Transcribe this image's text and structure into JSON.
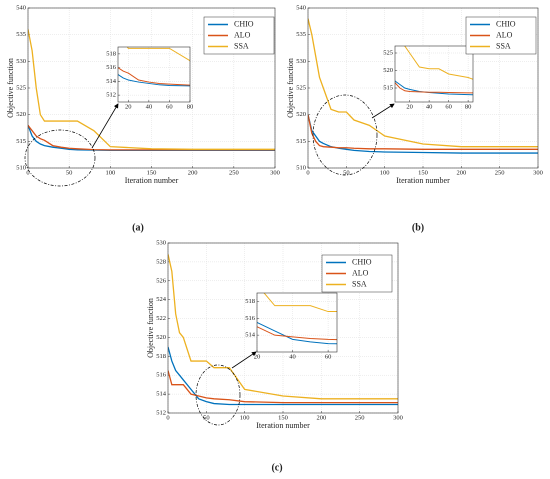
{
  "chart_data": [
    {
      "type": "line",
      "panel_label": "(a)",
      "x_label": "Iteration number",
      "y_label": "Objective function",
      "x": [
        0,
        5,
        10,
        15,
        20,
        30,
        40,
        50,
        60,
        80,
        100,
        150,
        200,
        300
      ],
      "series": [
        {
          "name": "CHIO",
          "color": "#0072BD",
          "values": [
            518,
            516,
            515,
            514.5,
            514.2,
            513.9,
            513.7,
            513.5,
            513.4,
            513.35,
            513.3,
            513.3,
            513.3,
            513.3
          ]
        },
        {
          "name": "ALO",
          "color": "#D95319",
          "values": [
            518,
            517,
            516,
            515.5,
            515.2,
            514.2,
            513.9,
            513.7,
            513.6,
            513.45,
            513.4,
            513.4,
            513.4,
            513.4
          ]
        },
        {
          "name": "SSA",
          "color": "#EDB120",
          "values": [
            536,
            532,
            525,
            520,
            518.8,
            518.8,
            518.8,
            518.8,
            518.8,
            517,
            514,
            513.6,
            513.5,
            513.5
          ]
        }
      ],
      "xlim": [
        0,
        300
      ],
      "xticks": [
        0,
        50,
        100,
        150,
        200,
        250,
        300
      ],
      "ylim": [
        510,
        540
      ],
      "yticks": [
        510,
        515,
        520,
        525,
        530,
        535,
        540
      ],
      "grid": true,
      "inset": {
        "xlim": [
          10,
          80
        ],
        "xticks": [
          20,
          40,
          60,
          80
        ],
        "ylim": [
          511,
          519
        ],
        "yticks": [
          512,
          514,
          516,
          518
        ]
      }
    },
    {
      "type": "line",
      "panel_label": "(b)",
      "x_label": "Iteration number",
      "y_label": "Objective function",
      "x": [
        0,
        5,
        10,
        15,
        20,
        30,
        40,
        50,
        60,
        80,
        100,
        150,
        200,
        300
      ],
      "series": [
        {
          "name": "CHIO",
          "color": "#0072BD",
          "values": [
            520,
            517,
            516,
            515,
            514.6,
            514,
            513.7,
            513.5,
            513.3,
            513.1,
            513,
            512.9,
            512.8,
            512.8
          ]
        },
        {
          "name": "ALO",
          "color": "#D95319",
          "values": [
            520,
            516.5,
            515,
            514.2,
            514,
            513.9,
            513.8,
            513.8,
            513.7,
            513.6,
            513.6,
            513.5,
            513.5,
            513.5
          ]
        },
        {
          "name": "SSA",
          "color": "#EDB120",
          "values": [
            538,
            535,
            531,
            527,
            525,
            521,
            520.5,
            520.5,
            519,
            518,
            516,
            514.5,
            514,
            514
          ]
        }
      ],
      "xlim": [
        0,
        300
      ],
      "xticks": [
        0,
        50,
        100,
        150,
        200,
        250,
        300
      ],
      "ylim": [
        510,
        540
      ],
      "yticks": [
        510,
        515,
        520,
        525,
        530,
        535,
        540
      ],
      "grid": true,
      "inset": {
        "xlim": [
          5,
          85
        ],
        "xticks": [
          20,
          40,
          60,
          80
        ],
        "ylim": [
          511,
          527
        ],
        "yticks": [
          515,
          520,
          525
        ]
      }
    },
    {
      "type": "line",
      "panel_label": "(c)",
      "x_label": "Iteration number",
      "y_label": "Objective function",
      "x": [
        0,
        5,
        10,
        15,
        20,
        30,
        40,
        50,
        60,
        80,
        100,
        150,
        200,
        300
      ],
      "series": [
        {
          "name": "CHIO",
          "color": "#0072BD",
          "values": [
            519,
            517.5,
            516.5,
            516,
            515.5,
            514.5,
            513.5,
            513.2,
            513,
            512.9,
            512.9,
            512.9,
            512.9,
            512.9
          ]
        },
        {
          "name": "ALO",
          "color": "#D95319",
          "values": [
            516.5,
            515,
            515,
            515,
            515,
            514,
            513.8,
            513.6,
            513.5,
            513.4,
            513.2,
            513.1,
            513.1,
            513.1
          ]
        },
        {
          "name": "SSA",
          "color": "#EDB120",
          "values": [
            528.8,
            527,
            522.5,
            520.5,
            520,
            517.5,
            517.5,
            517.5,
            516.8,
            516.8,
            514.5,
            513.8,
            513.5,
            513.5
          ]
        }
      ],
      "xlim": [
        0,
        300
      ],
      "xticks": [
        0,
        50,
        100,
        150,
        200,
        250,
        300
      ],
      "ylim": [
        512,
        530
      ],
      "yticks": [
        512,
        514,
        516,
        518,
        520,
        522,
        524,
        526,
        528,
        530
      ],
      "grid": true,
      "inset": {
        "xlim": [
          20,
          65
        ],
        "xticks": [
          20,
          40,
          60
        ],
        "ylim": [
          512,
          519
        ],
        "yticks": [
          514,
          516,
          518
        ]
      }
    }
  ]
}
